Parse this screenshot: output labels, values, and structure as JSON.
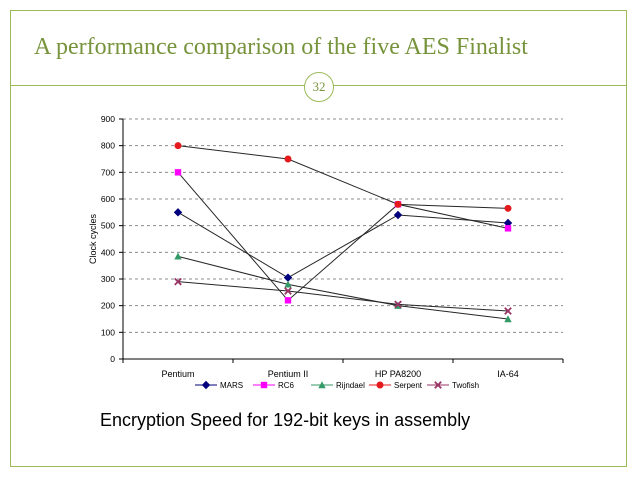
{
  "slide": {
    "title": "A performance comparison of the five AES Finalist",
    "page_number": "32",
    "caption": "Encryption Speed for 192-bit keys in assembly"
  },
  "colors": {
    "accent": "#9bbb59",
    "title": "#77933c"
  },
  "chart_data": {
    "type": "line",
    "categories": [
      "Pentium",
      "Pentium II",
      "HP PA8200",
      "IA-64"
    ],
    "ylabel": "Clock cycles",
    "ylim": [
      0,
      900
    ],
    "yticks": [
      "0",
      "100",
      "200",
      "300",
      "400",
      "500",
      "600",
      "700",
      "800",
      "900"
    ],
    "grid": true,
    "legend_position": "bottom",
    "series": [
      {
        "name": "MARS",
        "values": [
          550,
          305,
          540,
          510
        ],
        "color": "#00007f",
        "marker": "diamond"
      },
      {
        "name": "RC6",
        "values": [
          700,
          220,
          580,
          490
        ],
        "color": "#ff00ff",
        "marker": "square"
      },
      {
        "name": "Rijndael",
        "values": [
          385,
          280,
          200,
          150
        ],
        "color": "#339966",
        "marker": "triangle"
      },
      {
        "name": "Serpent",
        "values": [
          800,
          750,
          580,
          565
        ],
        "color": "#e41a1c",
        "marker": "circle"
      },
      {
        "name": "Twofish",
        "values": [
          290,
          255,
          205,
          180
        ],
        "color": "#993366",
        "marker": "x"
      }
    ]
  }
}
